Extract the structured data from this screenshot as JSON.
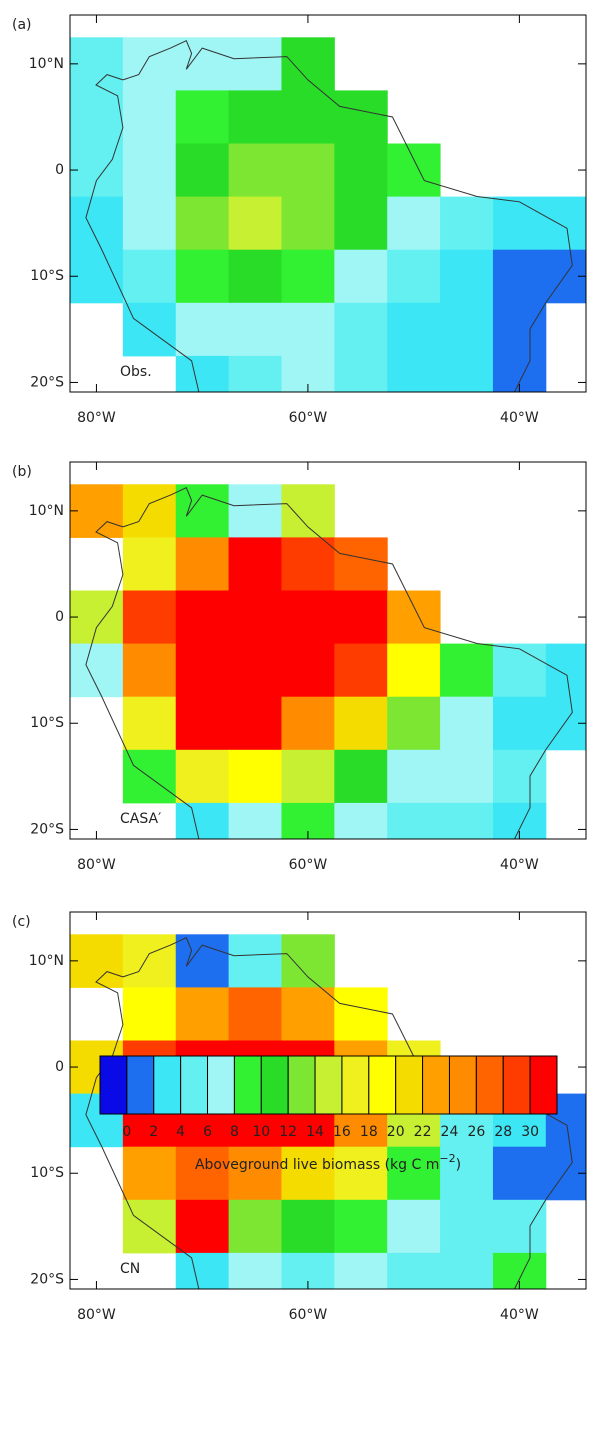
{
  "chart_data": [
    {
      "type": "heatmap",
      "panel_label": "(a)",
      "title": "Obs.",
      "x": [
        -80,
        -75,
        -70,
        -65,
        -60,
        -55,
        -50,
        -45,
        -40,
        -35
      ],
      "y": [
        10,
        5,
        0,
        -5,
        -10,
        -15,
        -20
      ],
      "values": [
        [
          5,
          7,
          7,
          7,
          10,
          null,
          null,
          null,
          null,
          null
        ],
        [
          5,
          6,
          9,
          10,
          11,
          11,
          null,
          null,
          null,
          null
        ],
        [
          4,
          7,
          11,
          13,
          12,
          11,
          9,
          null,
          null,
          null
        ],
        [
          3,
          6,
          12,
          15,
          12,
          10,
          7,
          4,
          3,
          2
        ],
        [
          2,
          5,
          9,
          10,
          9,
          7,
          5,
          2,
          1,
          1
        ],
        [
          null,
          3,
          6,
          6,
          6,
          5,
          3,
          2,
          1,
          null
        ],
        [
          null,
          null,
          2,
          5,
          6,
          5,
          3,
          2,
          1,
          null
        ]
      ],
      "xlim": [
        -82.5,
        -33.7
      ],
      "ylim": [
        -20.9,
        14.6
      ],
      "xticks": [
        {
          "value": -80,
          "label": "80°W"
        },
        {
          "value": -60,
          "label": "60°W"
        },
        {
          "value": -40,
          "label": "40°W"
        }
      ],
      "yticks": [
        {
          "value": 10,
          "label": "10°N"
        },
        0,
        {
          "value": -10,
          "label": "10°S"
        },
        {
          "value": -20,
          "label": "20°S"
        }
      ]
    },
    {
      "type": "heatmap",
      "panel_label": "(b)",
      "title": "CASA′",
      "x": [
        -80,
        -75,
        -70,
        -65,
        -60,
        -55,
        -50,
        -45,
        -40,
        -35
      ],
      "y": [
        10,
        5,
        0,
        -5,
        -10,
        -15,
        -20
      ],
      "values": [
        [
          22,
          20,
          8,
          6,
          14,
          null,
          null,
          null,
          null,
          null
        ],
        [
          null,
          16,
          24,
          30,
          28,
          26,
          null,
          null,
          null,
          null
        ],
        [
          14,
          28,
          32,
          32,
          32,
          30,
          22,
          null,
          null,
          null
        ],
        [
          6,
          24,
          32,
          32,
          32,
          28,
          18,
          8,
          4,
          2
        ],
        [
          null,
          16,
          32,
          30,
          24,
          20,
          12,
          6,
          2,
          2
        ],
        [
          null,
          8,
          16,
          18,
          14,
          10,
          6,
          6,
          4,
          null
        ],
        [
          null,
          null,
          2,
          6,
          8,
          6,
          4,
          4,
          2,
          null
        ]
      ],
      "xlim": [
        -82.5,
        -33.7
      ],
      "ylim": [
        -20.9,
        14.6
      ],
      "xticks": [
        {
          "value": -80,
          "label": "80°W"
        },
        {
          "value": -60,
          "label": "60°W"
        },
        {
          "value": -40,
          "label": "40°W"
        }
      ],
      "yticks": [
        {
          "value": 10,
          "label": "10°N"
        },
        0,
        {
          "value": -10,
          "label": "10°S"
        },
        {
          "value": -20,
          "label": "20°S"
        }
      ]
    },
    {
      "type": "heatmap",
      "panel_label": "(c)",
      "title": "CN",
      "x": [
        -80,
        -75,
        -70,
        -65,
        -60,
        -55,
        -50,
        -45,
        -40,
        -35
      ],
      "y": [
        10,
        5,
        0,
        -5,
        -10,
        -15,
        -20
      ],
      "values": [
        [
          20,
          16,
          1,
          4,
          12,
          null,
          null,
          null,
          null,
          null
        ],
        [
          null,
          18,
          22,
          26,
          22,
          18,
          null,
          null,
          null,
          null
        ],
        [
          20,
          28,
          30,
          32,
          30,
          22,
          16,
          null,
          null,
          null
        ],
        [
          2,
          30,
          32,
          30,
          30,
          24,
          14,
          4,
          2,
          1
        ],
        [
          null,
          22,
          26,
          24,
          20,
          16,
          8,
          4,
          1,
          1
        ],
        [
          null,
          14,
          30,
          12,
          10,
          8,
          6,
          5,
          4,
          null
        ],
        [
          null,
          null,
          2,
          6,
          4,
          6,
          4,
          4,
          8,
          null
        ]
      ],
      "xlim": [
        -82.5,
        -33.7
      ],
      "ylim": [
        -20.9,
        14.6
      ],
      "xticks": [
        {
          "value": -80,
          "label": "80°W"
        },
        {
          "value": -60,
          "label": "60°W"
        },
        {
          "value": -40,
          "label": "40°W"
        }
      ],
      "yticks": [
        {
          "value": 10,
          "label": "10°N"
        },
        0,
        {
          "value": -10,
          "label": "10°S"
        },
        {
          "value": -20,
          "label": "20°S"
        }
      ]
    },
    {
      "type": "colorbar",
      "levels": [
        0,
        2,
        4,
        6,
        8,
        10,
        12,
        14,
        16,
        18,
        20,
        22,
        24,
        26,
        28,
        30
      ],
      "colors": [
        "#0a0ae6",
        "#1e6ef0",
        "#3ce6f5",
        "#64f0f0",
        "#a0f5f5",
        "#32f032",
        "#28dc28",
        "#7ce632",
        "#c8f032",
        "#f0f01e",
        "#ffff00",
        "#f5dc00",
        "#ffa000",
        "#ff8c00",
        "#ff6400",
        "#ff3c00",
        "#ff0000"
      ],
      "label": "Aboveground live biomass (kg C m",
      "label_sup": "−2",
      "label_end": ")"
    }
  ]
}
